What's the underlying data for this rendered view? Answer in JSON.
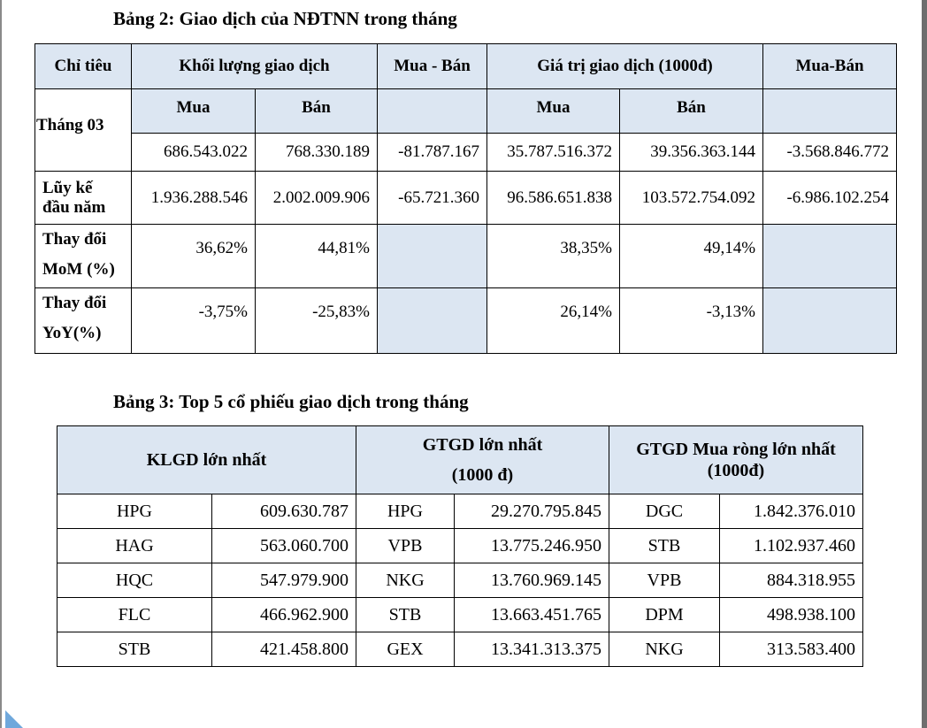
{
  "table2": {
    "title": "Bảng 2: Giao dịch của NĐTNN trong tháng",
    "headers": {
      "chi_tieu": "Chỉ tiêu",
      "khoi_luong": "Khối lượng giao dịch",
      "mua_ban_1": "Mua - Bán",
      "gia_tri": "Giá trị giao dịch (1000đ)",
      "mua_ban_2": "Mua-Bán",
      "thang": "Tháng 03",
      "mua_a": "Mua",
      "ban_a": "Bán",
      "mua_b": "Mua",
      "ban_b": "Bán"
    },
    "thang03": [
      "686.543.022",
      "768.330.189",
      "-81.787.167",
      "35.787.516.372",
      "39.356.363.144",
      "-3.568.846.772"
    ],
    "luy_ke": {
      "label_line1": "Lũy kế",
      "label_line2": "đầu năm",
      "values": [
        "1.936.288.546",
        "2.002.009.906",
        "-65.721.360",
        "96.586.651.838",
        "103.572.754.092",
        "-6.986.102.254"
      ]
    },
    "mom": {
      "label_line1": "Thay đổi",
      "label_line2": "MoM (%)",
      "kl_mua": "36,62%",
      "kl_ban": "44,81%",
      "gt_mua": "38,35%",
      "gt_ban": "49,14%"
    },
    "yoy": {
      "label_line1": "Thay đổi",
      "label_line2": "YoY(%)",
      "kl_mua": "-3,75%",
      "kl_ban": "-25,83%",
      "gt_mua": "26,14%",
      "gt_ban": "-3,13%"
    }
  },
  "table3": {
    "title": "Bảng 3: Top 5 cổ phiếu giao dịch trong tháng",
    "headers": {
      "klgd": "KLGD lớn nhất",
      "gtgd_line1": "GTGD lớn nhất",
      "gtgd_line2": "(1000 đ)",
      "mua_rong_line1": "GTGD Mua ròng lớn nhất",
      "mua_rong_line2": "(1000đ)"
    },
    "rows": [
      {
        "kl_code": "HPG",
        "kl_val": "609.630.787",
        "gt_code": "HPG",
        "gt_val": "29.270.795.845",
        "mr_code": "DGC",
        "mr_val": "1.842.376.010"
      },
      {
        "kl_code": "HAG",
        "kl_val": "563.060.700",
        "gt_code": "VPB",
        "gt_val": "13.775.246.950",
        "mr_code": "STB",
        "mr_val": "1.102.937.460"
      },
      {
        "kl_code": "HQC",
        "kl_val": "547.979.900",
        "gt_code": "NKG",
        "gt_val": "13.760.969.145",
        "mr_code": "VPB",
        "mr_val": "884.318.955"
      },
      {
        "kl_code": "FLC",
        "kl_val": "466.962.900",
        "gt_code": "STB",
        "gt_val": "13.663.451.765",
        "mr_code": "DPM",
        "mr_val": "498.938.100"
      },
      {
        "kl_code": "STB",
        "kl_val": "421.458.800",
        "gt_code": "GEX",
        "gt_val": "13.341.313.375",
        "mr_code": "NKG",
        "mr_val": "313.583.400"
      }
    ]
  }
}
